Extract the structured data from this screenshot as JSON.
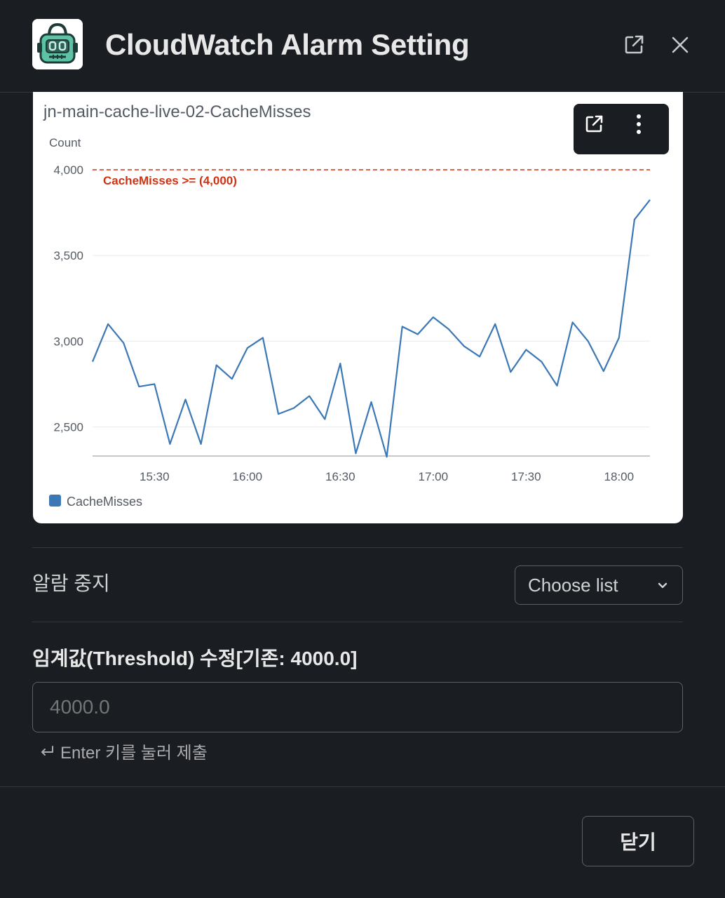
{
  "header": {
    "title": "CloudWatch Alarm Setting",
    "app_icon": "robot-icon",
    "popout_icon": "external-link-icon",
    "close_icon": "close-icon"
  },
  "chart_toolbar": {
    "popout_icon": "external-link-icon",
    "more_icon": "more-vertical-icon"
  },
  "chart_data": {
    "type": "line",
    "title": "jn-main-cache-live-02-CacheMisses",
    "ylabel": "Count",
    "xlabel": "",
    "ylim": [
      2330,
      4000
    ],
    "y_ticks": [
      2500,
      3000,
      3500,
      4000
    ],
    "y_tick_labels": [
      "2,500",
      "3,000",
      "3,500",
      "4,000"
    ],
    "x_ticks": [
      "15:30",
      "16:00",
      "16:30",
      "17:00",
      "17:30",
      "18:00"
    ],
    "x": [
      "15:10",
      "15:15",
      "15:20",
      "15:25",
      "15:30",
      "15:35",
      "15:40",
      "15:45",
      "15:50",
      "15:55",
      "16:00",
      "16:05",
      "16:10",
      "16:15",
      "16:20",
      "16:25",
      "16:30",
      "16:35",
      "16:40",
      "16:45",
      "16:50",
      "16:55",
      "17:00",
      "17:05",
      "17:10",
      "17:15",
      "17:20",
      "17:25",
      "17:30",
      "17:35",
      "17:40",
      "17:45",
      "17:50",
      "17:55",
      "18:00",
      "18:05",
      "18:10"
    ],
    "series": [
      {
        "name": "CacheMisses",
        "color": "#3b78b5",
        "values": [
          2880,
          3100,
          2990,
          2735,
          2750,
          2400,
          2660,
          2400,
          2860,
          2780,
          2960,
          3020,
          2575,
          2610,
          2680,
          2545,
          2870,
          2345,
          2645,
          2325,
          3085,
          3040,
          3140,
          3070,
          2970,
          2910,
          3100,
          2820,
          2950,
          2880,
          2740,
          3110,
          3000,
          2825,
          3020,
          3710,
          3825
        ]
      }
    ],
    "threshold": {
      "value": 4000,
      "label": "CacheMisses >= (4,000)",
      "color": "#d13212"
    },
    "legend": {
      "position": "bottom-left",
      "entries": [
        "CacheMisses"
      ]
    },
    "grid": true
  },
  "alarm_stop": {
    "label": "알람 중지",
    "select_value": "Choose list",
    "chevron_icon": "chevron-down-icon"
  },
  "threshold_field": {
    "label": "임계값(Threshold) 수정[기존: 4000.0]",
    "placeholder": "4000.0",
    "hint": "Enter 키를 눌러 제출",
    "hint_icon": "return-arrow-icon"
  },
  "footer": {
    "close_label": "닫기"
  }
}
